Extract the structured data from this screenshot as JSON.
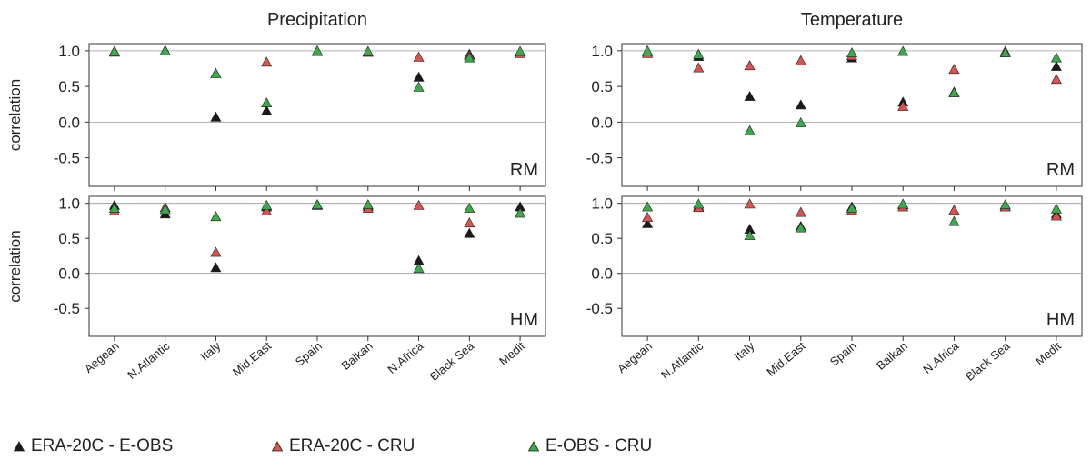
{
  "chart_data": [
    {
      "type": "scatter",
      "title": "Precipitation",
      "panel_label": "RM",
      "ylabel": "correlation",
      "ylim": [
        -0.9,
        1.1
      ],
      "yticks": [
        "1.0",
        "0.5",
        "0.0",
        "-0.5"
      ],
      "categories": [
        "Aegean",
        "N.Atlantic",
        "Italy",
        "Mid.East",
        "Spain",
        "Balkan",
        "N.Africa",
        "Black Sea",
        "Medit"
      ],
      "series": [
        {
          "name": "ERA-20C - E-OBS",
          "values": [
            0.99,
            1.0,
            0.07,
            0.16,
            0.99,
            0.98,
            0.63,
            0.95,
            0.97
          ]
        },
        {
          "name": "ERA-20C - CRU",
          "values": [
            0.98,
            1.0,
            0.68,
            0.84,
            0.99,
            0.98,
            0.91,
            0.93,
            0.96
          ]
        },
        {
          "name": "E-OBS - CRU",
          "values": [
            0.99,
            1.0,
            0.68,
            0.27,
            1.0,
            0.99,
            0.49,
            0.9,
            0.99
          ]
        }
      ]
    },
    {
      "type": "scatter",
      "title": "Temperature",
      "panel_label": "RM",
      "ylabel": "",
      "ylim": [
        -0.9,
        1.1
      ],
      "yticks": [
        "1.0",
        "0.5",
        "0.0",
        "-0.5"
      ],
      "categories": [
        "Aegean",
        "N.Atlantic",
        "Italy",
        "Mid.East",
        "Spain",
        "Balkan",
        "N.Africa",
        "Black Sea",
        "Medit"
      ],
      "series": [
        {
          "name": "ERA-20C - E-OBS",
          "values": [
            0.98,
            0.92,
            0.36,
            0.24,
            0.9,
            0.28,
            0.42,
            0.97,
            0.78
          ]
        },
        {
          "name": "ERA-20C - CRU",
          "values": [
            0.96,
            0.76,
            0.79,
            0.86,
            0.93,
            0.22,
            0.74,
            0.99,
            0.6
          ]
        },
        {
          "name": "E-OBS - CRU",
          "values": [
            1.0,
            0.95,
            -0.12,
            -0.01,
            0.97,
            0.99,
            0.41,
            0.97,
            0.9
          ]
        }
      ]
    },
    {
      "type": "scatter",
      "title": "",
      "panel_label": "HM",
      "ylabel": "correlation",
      "ylim": [
        -0.9,
        1.1
      ],
      "yticks": [
        "1.0",
        "0.5",
        "0.0",
        "-0.5"
      ],
      "categories": [
        "Aegean",
        "N.Atlantic",
        "Italy",
        "Mid.East",
        "Spain",
        "Balkan",
        "N.Africa",
        "Black Sea",
        "Medit"
      ],
      "series": [
        {
          "name": "ERA-20C - E-OBS",
          "values": [
            0.97,
            0.85,
            0.08,
            0.95,
            0.97,
            0.96,
            0.18,
            0.57,
            0.95
          ]
        },
        {
          "name": "ERA-20C - CRU",
          "values": [
            0.89,
            0.94,
            0.3,
            0.89,
            0.98,
            0.93,
            0.97,
            0.72,
            0.86
          ]
        },
        {
          "name": "E-OBS - CRU",
          "values": [
            0.93,
            0.91,
            0.81,
            0.97,
            0.98,
            0.98,
            0.07,
            0.93,
            0.86
          ]
        }
      ]
    },
    {
      "type": "scatter",
      "title": "",
      "panel_label": "HM",
      "ylabel": "",
      "ylim": [
        -0.9,
        1.1
      ],
      "yticks": [
        "1.0",
        "0.5",
        "0.0",
        "-0.5"
      ],
      "categories": [
        "Aegean",
        "N.Atlantic",
        "Italy",
        "Mid.East",
        "Spain",
        "Balkan",
        "N.Africa",
        "Black Sea",
        "Medit"
      ],
      "series": [
        {
          "name": "ERA-20C - E-OBS",
          "values": [
            0.71,
            0.96,
            0.63,
            0.67,
            0.95,
            0.98,
            0.9,
            0.96,
            0.85
          ]
        },
        {
          "name": "ERA-20C - CRU",
          "values": [
            0.8,
            0.94,
            0.99,
            0.87,
            0.9,
            0.95,
            0.9,
            0.95,
            0.82
          ]
        },
        {
          "name": "E-OBS - CRU",
          "values": [
            0.95,
            0.99,
            0.54,
            0.65,
            0.93,
            0.99,
            0.74,
            0.98,
            0.92
          ]
        }
      ]
    }
  ],
  "legend": {
    "position": "bottom-left",
    "items": [
      {
        "label": "ERA-20C - E-OBS",
        "color": "#1a1a1a"
      },
      {
        "label": "ERA-20C - CRU",
        "color": "#d9534f"
      },
      {
        "label": "E-OBS - CRU",
        "color": "#3aaa4a"
      }
    ]
  },
  "colors": {
    "ERA-20C - E-OBS": "#1a1a1a",
    "ERA-20C - CRU": "#d9534f",
    "E-OBS - CRU": "#3aaa4a"
  }
}
